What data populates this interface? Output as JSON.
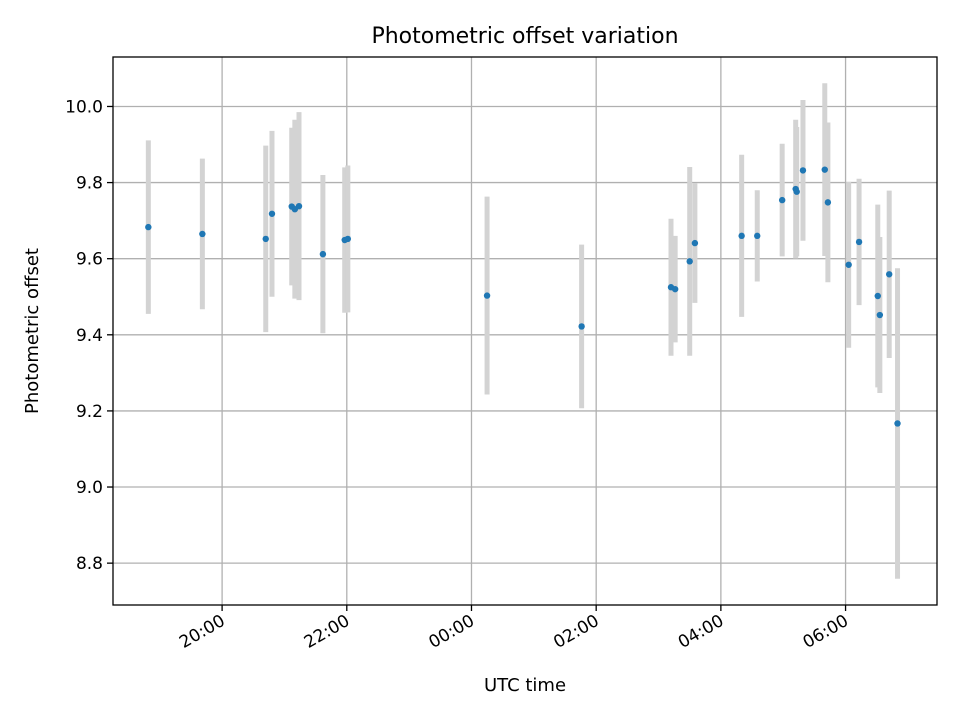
{
  "chart_data": {
    "type": "scatter",
    "title": "Photometric offset variation",
    "xlabel": "UTC time",
    "ylabel": "Photometric offset",
    "x_axis": "time",
    "xlim": [
      "18:15",
      "07:28"
    ],
    "ylim": [
      8.69,
      10.13
    ],
    "xticks": [
      {
        "time": "20:00",
        "label": "20:00"
      },
      {
        "time": "22:00",
        "label": "22:00"
      },
      {
        "time": "24:00",
        "label": "00:00"
      },
      {
        "time": "26:00",
        "label": "02:00"
      },
      {
        "time": "28:00",
        "label": "04:00"
      },
      {
        "time": "30:00",
        "label": "06:00"
      }
    ],
    "yticks": [
      8.8,
      9.0,
      9.2,
      9.4,
      9.6,
      9.8,
      10.0
    ],
    "ytick_labels": [
      "8.8",
      "9.0",
      "9.2",
      "9.4",
      "9.6",
      "9.8",
      "10.0"
    ],
    "grid": true,
    "point_color": "#1f77b4",
    "errorbar_color": "#d3d3d3",
    "points": [
      {
        "time": "18:49",
        "y": 9.683,
        "err": 0.228
      },
      {
        "time": "19:41",
        "y": 9.665,
        "err": 0.198
      },
      {
        "time": "20:42",
        "y": 9.652,
        "err": 0.245
      },
      {
        "time": "20:48",
        "y": 9.718,
        "err": 0.218
      },
      {
        "time": "21:07",
        "y": 9.737,
        "err": 0.207
      },
      {
        "time": "21:10",
        "y": 9.73,
        "err": 0.235
      },
      {
        "time": "21:14",
        "y": 9.738,
        "err": 0.247
      },
      {
        "time": "21:37",
        "y": 9.612,
        "err": 0.208
      },
      {
        "time": "21:58",
        "y": 9.649,
        "err": 0.191
      },
      {
        "time": "22:01",
        "y": 9.652,
        "err": 0.193
      },
      {
        "time": "00:15",
        "y": 9.503,
        "err": 0.26
      },
      {
        "time": "01:46",
        "y": 9.422,
        "err": 0.215
      },
      {
        "time": "03:12",
        "y": 9.525,
        "err": 0.18
      },
      {
        "time": "03:16",
        "y": 9.52,
        "err": 0.14
      },
      {
        "time": "03:30",
        "y": 9.593,
        "err": 0.248
      },
      {
        "time": "03:35",
        "y": 9.641,
        "err": 0.157
      },
      {
        "time": "04:20",
        "y": 9.66,
        "err": 0.213
      },
      {
        "time": "04:35",
        "y": 9.66,
        "err": 0.12
      },
      {
        "time": "04:59",
        "y": 9.754,
        "err": 0.148
      },
      {
        "time": "05:12",
        "y": 9.783,
        "err": 0.182
      },
      {
        "time": "05:13",
        "y": 9.776,
        "err": 0.17
      },
      {
        "time": "05:19",
        "y": 9.832,
        "err": 0.185
      },
      {
        "time": "05:40",
        "y": 9.834,
        "err": 0.227
      },
      {
        "time": "05:43",
        "y": 9.748,
        "err": 0.21
      },
      {
        "time": "06:03",
        "y": 9.584,
        "err": 0.218
      },
      {
        "time": "06:13",
        "y": 9.644,
        "err": 0.166
      },
      {
        "time": "06:31",
        "y": 9.502,
        "err": 0.24
      },
      {
        "time": "06:33",
        "y": 9.452,
        "err": 0.205
      },
      {
        "time": "06:42",
        "y": 9.559,
        "err": 0.22
      },
      {
        "time": "06:50",
        "y": 9.167,
        "err": 0.408
      }
    ]
  }
}
